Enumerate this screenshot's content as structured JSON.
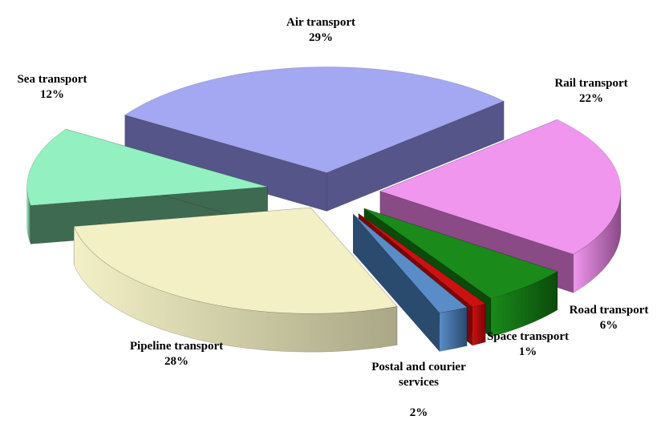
{
  "chart_data": {
    "type": "pie",
    "style": "3d-exploded",
    "slices": [
      {
        "name": "Air transport",
        "percent_label": "29%",
        "value": 29,
        "color": "#a4a7f2",
        "side_color": "#55558a"
      },
      {
        "name": "Rail transport",
        "percent_label": "22%",
        "value": 22,
        "color": "#f096ee",
        "side_color": "#8a4a86"
      },
      {
        "name": "Road transport",
        "percent_label": "6%",
        "value": 6,
        "color": "#1a8a1a",
        "side_color": "#0b4a0b"
      },
      {
        "name": "Space transport",
        "percent_label": "1%",
        "value": 1,
        "color": "#cc1111",
        "side_color": "#7a0606"
      },
      {
        "name": "Postal and courier\nservices",
        "percent_label": "2%",
        "value": 2,
        "color": "#5a8cc8",
        "side_color": "#2a4a6e"
      },
      {
        "name": "Pipeline transport",
        "percent_label": "28%",
        "value": 28,
        "color": "#f3f0c6",
        "side_color": "#a9a785"
      },
      {
        "name": "Sea transport",
        "percent_label": "12%",
        "value": 12,
        "color": "#93f0c0",
        "side_color": "#3f6a52"
      }
    ],
    "legend": "none"
  }
}
